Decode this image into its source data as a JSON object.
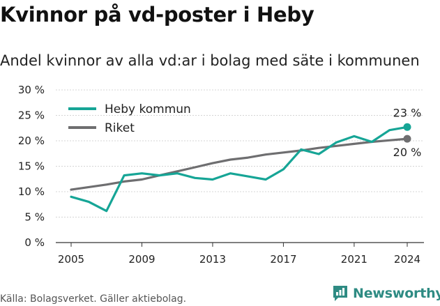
{
  "header": {
    "title": "Kvinnor på vd-poster i Heby",
    "subtitle": "Andel kvinnor av alla vd:ar i bolag med säte i kommunen"
  },
  "footer": {
    "source": "Källa: Bolagsverket. Gäller aktiebolag.",
    "brand": "Newsworthy",
    "brand_icon": "newsworthy-logo-icon"
  },
  "chart_data": {
    "type": "line",
    "title": "",
    "xlabel": "",
    "ylabel": "",
    "x": [
      2005,
      2006,
      2007,
      2008,
      2009,
      2010,
      2011,
      2012,
      2013,
      2014,
      2015,
      2016,
      2017,
      2018,
      2019,
      2020,
      2021,
      2022,
      2023,
      2024
    ],
    "xticks": [
      "2005",
      "2009",
      "2013",
      "2017",
      "2021",
      "2024"
    ],
    "yticks": [
      "0 %",
      "5 %",
      "10 %",
      "15 %",
      "20 %",
      "25 %",
      "30 %"
    ],
    "ylim": [
      0,
      30
    ],
    "grid": "horizontal",
    "legend_position": "top-left",
    "series": [
      {
        "name": "Heby kommun",
        "color": "#16a596",
        "values": [
          9.0,
          8.0,
          6.2,
          13.2,
          13.6,
          13.2,
          13.6,
          12.7,
          12.4,
          13.6,
          13.0,
          12.4,
          14.4,
          18.3,
          17.4,
          19.7,
          20.9,
          19.8,
          22.1,
          22.7
        ],
        "end_label": "23 %"
      },
      {
        "name": "Riket",
        "color": "#6e6e70",
        "values": [
          10.4,
          10.9,
          11.4,
          12.0,
          12.4,
          13.2,
          14.0,
          14.8,
          15.6,
          16.3,
          16.7,
          17.3,
          17.7,
          18.1,
          18.6,
          19.0,
          19.4,
          19.8,
          20.1,
          20.4
        ],
        "end_label": "20 %"
      }
    ]
  }
}
